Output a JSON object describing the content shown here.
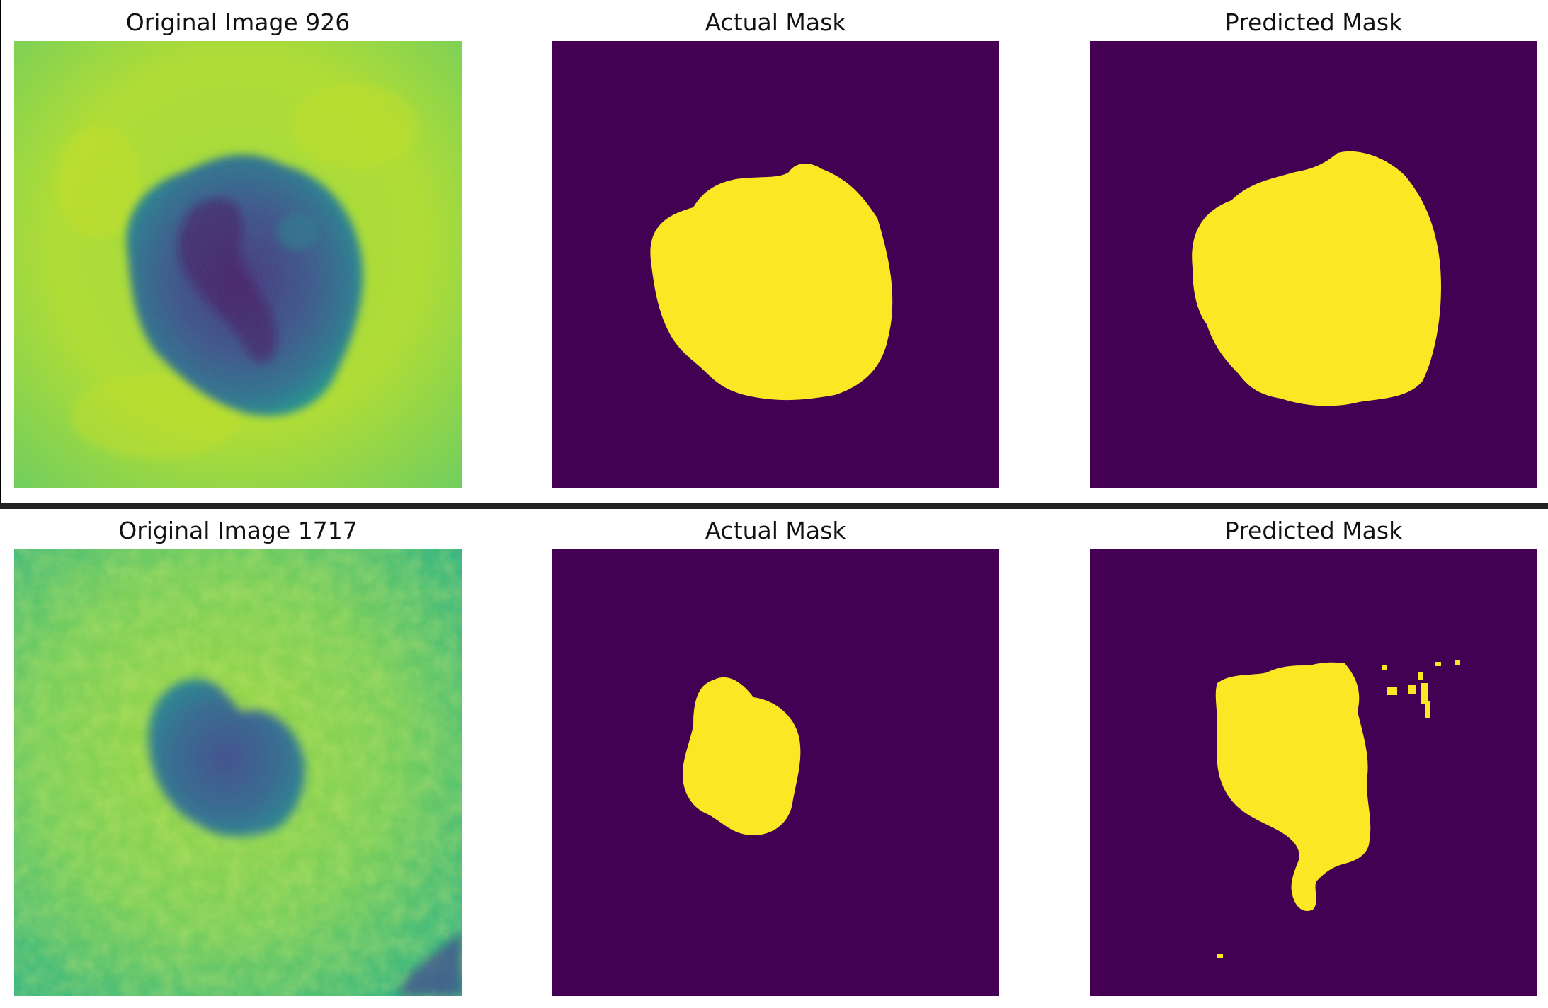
{
  "figure_rows": [
    {
      "original_title": "Original Image 926",
      "actual_title": "Actual Mask",
      "predicted_title": "Predicted Mask"
    },
    {
      "original_title": "Original Image 1717",
      "actual_title": "Actual Mask",
      "predicted_title": "Predicted Mask"
    }
  ],
  "colors": {
    "mask_background": "#440154",
    "mask_foreground": "#fde725",
    "skin_yellow": "#b8de29",
    "skin_green": "#55c667",
    "lesion_blue": "#33638d",
    "lesion_purple": "#482878",
    "skin_teal": "#2a9d8f"
  }
}
